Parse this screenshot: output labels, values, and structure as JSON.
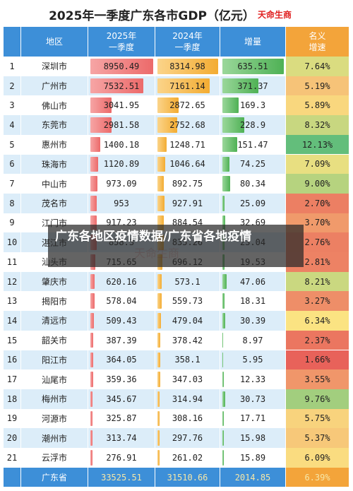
{
  "header": {
    "title": "2025年一季度广东各市GDP（亿元）",
    "brand": "天命生商"
  },
  "table": {
    "columns": [
      "地区",
      "2025年\n一季度",
      "2024年\n一季度",
      "增量",
      "名义\n增速"
    ],
    "rows": [
      [
        1,
        "深圳市",
        8950.49,
        8314.98,
        635.51,
        "7.64%"
      ],
      [
        2,
        "广州市",
        7532.51,
        7161.14,
        371.37,
        "5.19%"
      ],
      [
        3,
        "佛山市",
        3041.95,
        2872.65,
        169.3,
        "5.89%"
      ],
      [
        4,
        "东莞市",
        2981.58,
        2752.68,
        228.9,
        "8.32%"
      ],
      [
        5,
        "惠州市",
        1400.18,
        1248.71,
        151.47,
        "12.13%"
      ],
      [
        6,
        "珠海市",
        1120.89,
        1046.64,
        74.25,
        "7.09%"
      ],
      [
        7,
        "中山市",
        973.09,
        892.75,
        80.34,
        "9.00%"
      ],
      [
        8,
        "茂名市",
        953,
        927.91,
        25.09,
        "2.70%"
      ],
      [
        9,
        "江门市",
        917.23,
        884.54,
        32.69,
        "3.70%"
      ],
      [
        10,
        "湛江市",
        858.3,
        835.26,
        23.04,
        "2.76%"
      ],
      [
        11,
        "汕头市",
        715.65,
        696.12,
        19.53,
        "2.81%"
      ],
      [
        12,
        "肇庆市",
        620.16,
        573.1,
        47.06,
        "8.21%"
      ],
      [
        13,
        "揭阳市",
        578.04,
        559.73,
        18.31,
        "3.27%"
      ],
      [
        14,
        "清远市",
        509.43,
        479.04,
        30.39,
        "6.34%"
      ],
      [
        15,
        "韶关市",
        387.39,
        378.42,
        8.97,
        "2.37%"
      ],
      [
        16,
        "阳江市",
        364.05,
        358.1,
        5.95,
        "1.66%"
      ],
      [
        17,
        "汕尾市",
        359.36,
        347.03,
        12.33,
        "3.55%"
      ],
      [
        18,
        "梅州市",
        345.67,
        314.94,
        30.73,
        "9.76%"
      ],
      [
        19,
        "河源市",
        325.87,
        308.16,
        17.71,
        "5.75%"
      ],
      [
        20,
        "潮州市",
        313.74,
        297.76,
        15.98,
        "5.37%"
      ],
      [
        21,
        "云浮市",
        276.91,
        261.02,
        15.89,
        "6.09%"
      ]
    ],
    "total": [
      "广东省",
      33525.51,
      31510.66,
      2014.85,
      "6.39%"
    ]
  },
  "overlay": "广东各地区疫情数据/广东省各地疫情"
}
